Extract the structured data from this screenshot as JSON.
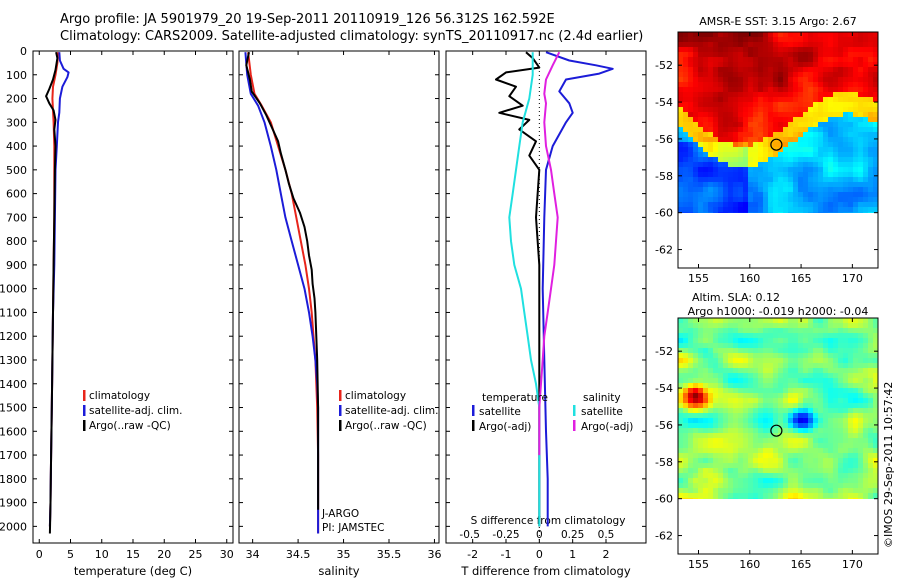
{
  "header": {
    "line1": "Argo profile: JA 5901979_20 19-Sep-2011 20110919_126 56.312S 162.592E",
    "line2": "Climatology: CARS2009. Satellite-adjusted climatology: synTS_20110917.nc (2.4d earlier)"
  },
  "colors": {
    "climatology": "#e8251b",
    "satellite": "#1c1cd8",
    "argo": "#000000",
    "satellite_salinity": "#20e0e0",
    "argo_salinity": "#e020e0"
  },
  "depth_axis": {
    "ticks": [
      0,
      100,
      200,
      300,
      400,
      500,
      600,
      700,
      800,
      900,
      1000,
      1100,
      1200,
      1300,
      1400,
      1500,
      1600,
      1700,
      1800,
      1900,
      2000
    ],
    "ylim": [
      0,
      2070
    ]
  },
  "chart_data": [
    {
      "type": "line",
      "id": "temperature",
      "xlabel": "temperature (deg C)",
      "xlim": [
        -1,
        31
      ],
      "xticks": [
        0,
        5,
        10,
        15,
        20,
        25,
        30
      ],
      "legend": [
        "climatology",
        "satellite-adj. clim.",
        "Argo(..raw -QC)"
      ],
      "series": [
        {
          "name": "climatology",
          "color": "#e8251b",
          "points": [
            [
              3.0,
              5
            ],
            [
              2.9,
              50
            ],
            [
              2.6,
              100
            ],
            [
              2.2,
              150
            ],
            [
              2.1,
              200
            ],
            [
              2.2,
              250
            ],
            [
              2.3,
              300
            ],
            [
              2.4,
              400
            ],
            [
              2.4,
              500
            ],
            [
              2.4,
              700
            ],
            [
              2.3,
              900
            ],
            [
              2.2,
              1100
            ],
            [
              2.1,
              1300
            ],
            [
              2.0,
              1500
            ],
            [
              1.9,
              1700
            ],
            [
              1.8,
              1900
            ],
            [
              1.7,
              2000
            ]
          ]
        },
        {
          "name": "satellite-adj. clim.",
          "color": "#1c1cd8",
          "points": [
            [
              3.2,
              5
            ],
            [
              3.3,
              40
            ],
            [
              3.9,
              75
            ],
            [
              4.7,
              90
            ],
            [
              4.5,
              110
            ],
            [
              3.7,
              150
            ],
            [
              3.3,
              200
            ],
            [
              3.2,
              260
            ],
            [
              3.0,
              300
            ],
            [
              2.8,
              400
            ],
            [
              2.6,
              500
            ],
            [
              2.5,
              700
            ],
            [
              2.4,
              900
            ],
            [
              2.2,
              1100
            ],
            [
              2.1,
              1300
            ],
            [
              2.0,
              1500
            ],
            [
              1.9,
              1700
            ],
            [
              1.8,
              1900
            ],
            [
              1.7,
              2000
            ]
          ]
        },
        {
          "name": "Argo(..raw -QC)",
          "color": "#000000",
          "points": [
            [
              2.7,
              5
            ],
            [
              2.9,
              30
            ],
            [
              2.6,
              80
            ],
            [
              2.2,
              120
            ],
            [
              1.6,
              160
            ],
            [
              1.1,
              190
            ],
            [
              1.6,
              220
            ],
            [
              2.3,
              250
            ],
            [
              2.6,
              290
            ],
            [
              2.4,
              330
            ],
            [
              2.6,
              400
            ],
            [
              2.5,
              500
            ],
            [
              2.4,
              700
            ],
            [
              2.3,
              900
            ],
            [
              2.2,
              1100
            ],
            [
              2.1,
              1300
            ],
            [
              2.0,
              1500
            ],
            [
              1.9,
              1700
            ],
            [
              1.8,
              1900
            ],
            [
              1.7,
              2030
            ]
          ]
        }
      ]
    },
    {
      "type": "line",
      "id": "salinity",
      "xlabel": "salinity",
      "xlim": [
        33.85,
        36.05
      ],
      "xticks": [
        34,
        34.5,
        35,
        35.5,
        36
      ],
      "legend": [
        "climatology",
        "satellite-adj. clim.",
        "Argo(..raw -QC)"
      ],
      "annotations": [
        "J-ARGO",
        "PI: JAMSTEC"
      ],
      "series": [
        {
          "name": "climatology",
          "color": "#e8251b",
          "points": [
            [
              33.95,
              5
            ],
            [
              33.98,
              100
            ],
            [
              34.02,
              180
            ],
            [
              34.1,
              230
            ],
            [
              34.2,
              300
            ],
            [
              34.28,
              400
            ],
            [
              34.36,
              500
            ],
            [
              34.43,
              600
            ],
            [
              34.48,
              700
            ],
            [
              34.53,
              800
            ],
            [
              34.58,
              900
            ],
            [
              34.62,
              1000
            ],
            [
              34.65,
              1100
            ],
            [
              34.67,
              1200
            ],
            [
              34.69,
              1300
            ],
            [
              34.7,
              1400
            ],
            [
              34.71,
              1500
            ],
            [
              34.72,
              1700
            ],
            [
              34.72,
              1900
            ],
            [
              34.72,
              2030
            ]
          ]
        },
        {
          "name": "satellite-adj. clim.",
          "color": "#1c1cd8",
          "points": [
            [
              33.92,
              5
            ],
            [
              33.94,
              100
            ],
            [
              33.98,
              180
            ],
            [
              34.06,
              230
            ],
            [
              34.13,
              300
            ],
            [
              34.2,
              400
            ],
            [
              34.26,
              500
            ],
            [
              34.31,
              600
            ],
            [
              34.36,
              700
            ],
            [
              34.43,
              800
            ],
            [
              34.5,
              900
            ],
            [
              34.57,
              1000
            ],
            [
              34.62,
              1100
            ],
            [
              34.66,
              1200
            ],
            [
              34.69,
              1300
            ],
            [
              34.71,
              1400
            ],
            [
              34.72,
              1500
            ],
            [
              34.72,
              1700
            ],
            [
              34.72,
              1900
            ],
            [
              34.72,
              2030
            ]
          ]
        },
        {
          "name": "Argo(..raw -QC)",
          "color": "#000000",
          "points": [
            [
              33.96,
              5
            ],
            [
              33.93,
              60
            ],
            [
              33.97,
              120
            ],
            [
              33.99,
              170
            ],
            [
              34.08,
              220
            ],
            [
              34.15,
              270
            ],
            [
              34.21,
              320
            ],
            [
              34.28,
              380
            ],
            [
              34.31,
              430
            ],
            [
              34.36,
              500
            ],
            [
              34.4,
              560
            ],
            [
              34.45,
              620
            ],
            [
              34.52,
              680
            ],
            [
              34.57,
              740
            ],
            [
              34.6,
              800
            ],
            [
              34.62,
              860
            ],
            [
              34.65,
              920
            ],
            [
              34.66,
              980
            ],
            [
              34.68,
              1040
            ],
            [
              34.69,
              1100
            ],
            [
              34.7,
              1200
            ],
            [
              34.71,
              1300
            ],
            [
              34.72,
              1500
            ],
            [
              34.72,
              1700
            ],
            [
              34.72,
              1900
            ],
            [
              34.72,
              1930
            ]
          ]
        }
      ]
    },
    {
      "type": "line",
      "id": "difference",
      "xlabel": "T difference from climatology",
      "xlabel_top": "S difference from climatology",
      "xlim_T": [
        -2.8,
        3.2
      ],
      "xticks_T": [
        -2,
        -1,
        0,
        1,
        2
      ],
      "xticks_S": [
        "-0.5",
        "-0.25",
        "0",
        "0.25",
        "0.5"
      ],
      "legend_temperature": {
        "title": "temperature",
        "items": [
          "satellite",
          "Argo(-adj)"
        ]
      },
      "legend_salinity": {
        "title": "salinity",
        "items": [
          "satellite",
          "Argo(-adj)"
        ]
      },
      "series": [
        {
          "name": "temperature satellite",
          "color": "#1c1cd8",
          "points": [
            [
              0.2,
              5
            ],
            [
              0.9,
              40
            ],
            [
              1.7,
              60
            ],
            [
              2.2,
              75
            ],
            [
              1.8,
              95
            ],
            [
              0.8,
              120
            ],
            [
              0.6,
              170
            ],
            [
              0.9,
              220
            ],
            [
              1.0,
              260
            ],
            [
              0.8,
              300
            ],
            [
              0.4,
              400
            ],
            [
              0.2,
              500
            ],
            [
              0.15,
              700
            ],
            [
              0.1,
              1000
            ],
            [
              0.15,
              1300
            ],
            [
              0.2,
              1600
            ],
            [
              0.25,
              1800
            ],
            [
              0.25,
              2000
            ]
          ]
        },
        {
          "name": "temperature Argo(-adj)",
          "color": "#000000",
          "points": [
            [
              -0.4,
              5
            ],
            [
              -0.2,
              30
            ],
            [
              0.0,
              70
            ],
            [
              -1.0,
              90
            ],
            [
              -1.3,
              120
            ],
            [
              -0.7,
              150
            ],
            [
              -0.9,
              190
            ],
            [
              -0.5,
              230
            ],
            [
              -1.2,
              260
            ],
            [
              -0.3,
              290
            ],
            [
              -0.6,
              330
            ],
            [
              -0.1,
              380
            ],
            [
              -0.3,
              440
            ],
            [
              0.0,
              500
            ],
            [
              -0.1,
              700
            ],
            [
              0.0,
              900
            ],
            [
              0.0,
              1200
            ],
            [
              0.0,
              1500
            ],
            [
              0.0,
              1800
            ],
            [
              0.0,
              2000
            ]
          ]
        },
        {
          "name": "salinity satellite",
          "color": "#20e0e0",
          "points": [
            [
              -0.2,
              5
            ],
            [
              -0.2,
              100
            ],
            [
              -0.3,
              200
            ],
            [
              -0.5,
              300
            ],
            [
              -0.6,
              400
            ],
            [
              -0.7,
              500
            ],
            [
              -0.8,
              600
            ],
            [
              -0.9,
              700
            ],
            [
              -0.85,
              800
            ],
            [
              -0.75,
              900
            ],
            [
              -0.55,
              1000
            ],
            [
              -0.45,
              1100
            ],
            [
              -0.35,
              1200
            ],
            [
              -0.25,
              1300
            ],
            [
              -0.1,
              1400
            ],
            [
              0.0,
              1500
            ],
            [
              0.0,
              1700
            ],
            [
              0.0,
              1900
            ],
            [
              0.0,
              2000
            ]
          ]
        },
        {
          "name": "salinity Argo(-adj)",
          "color": "#e020e0",
          "points": [
            [
              0.6,
              5
            ],
            [
              0.4,
              60
            ],
            [
              0.2,
              120
            ],
            [
              0.15,
              180
            ],
            [
              0.2,
              220
            ],
            [
              0.15,
              300
            ],
            [
              0.2,
              400
            ],
            [
              0.35,
              500
            ],
            [
              0.45,
              600
            ],
            [
              0.55,
              700
            ],
            [
              0.5,
              800
            ],
            [
              0.45,
              900
            ],
            [
              0.35,
              1000
            ],
            [
              0.25,
              1100
            ],
            [
              0.15,
              1200
            ],
            [
              0.1,
              1300
            ],
            [
              0.05,
              1400
            ],
            [
              0.0,
              1500
            ],
            [
              0.0,
              1700
            ]
          ]
        }
      ]
    }
  ],
  "maps": [
    {
      "id": "sst",
      "title": "AMSR-E SST: 3.15 Argo: 2.67",
      "xticks": [
        155,
        160,
        165,
        170
      ],
      "yticks": [
        -52,
        -54,
        -56,
        -58,
        -60,
        -62
      ],
      "xlim": [
        153,
        172.5
      ],
      "ylim": [
        -63,
        -50.2
      ],
      "data_bottom_lat": -60,
      "marker": {
        "lon": 162.592,
        "lat": -56.312
      }
    },
    {
      "id": "sla",
      "title_line1": "Altim. SLA: 0.12",
      "title_line2": "Argo h1000: -0.019 h2000: -0.04",
      "xticks": [
        155,
        160,
        165,
        170
      ],
      "yticks": [
        -52,
        -54,
        -56,
        -58,
        -60,
        -62
      ],
      "xlim": [
        153,
        172.5
      ],
      "ylim": [
        -63,
        -50.2
      ],
      "data_bottom_lat": -60,
      "marker": {
        "lon": 162.592,
        "lat": -56.312
      }
    }
  ],
  "footer": {
    "credit": "©IMOS 29-Sep-2011 10:57:42"
  }
}
